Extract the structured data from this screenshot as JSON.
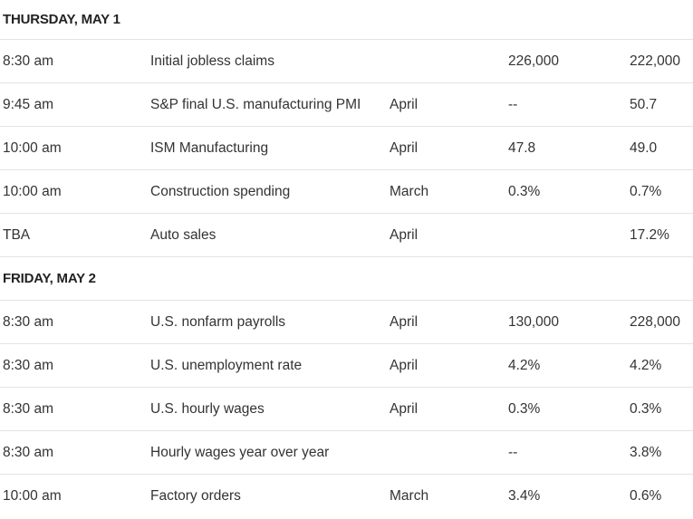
{
  "days": [
    {
      "header": "THURSDAY, MAY 1",
      "rows": [
        {
          "time": "8:30 am",
          "report": "Initial jobless claims",
          "period": "",
          "forecast": "226,000",
          "previous": "222,000"
        },
        {
          "time": "9:45 am",
          "report": "S&P final U.S. manufacturing PMI",
          "period": "April",
          "forecast": "--",
          "previous": "50.7"
        },
        {
          "time": "10:00 am",
          "report": "ISM Manufacturing",
          "period": "April",
          "forecast": "47.8",
          "previous": "49.0"
        },
        {
          "time": "10:00 am",
          "report": "Construction spending",
          "period": "March",
          "forecast": "0.3%",
          "previous": "0.7%"
        },
        {
          "time": "TBA",
          "report": "Auto sales",
          "period": "April",
          "forecast": "",
          "previous": "17.2%"
        }
      ]
    },
    {
      "header": "FRIDAY, MAY 2",
      "rows": [
        {
          "time": "8:30 am",
          "report": "U.S. nonfarm payrolls",
          "period": "April",
          "forecast": "130,000",
          "previous": "228,000"
        },
        {
          "time": "8:30 am",
          "report": "U.S. unemployment rate",
          "period": "April",
          "forecast": "4.2%",
          "previous": "4.2%"
        },
        {
          "time": "8:30 am",
          "report": "U.S. hourly wages",
          "period": "April",
          "forecast": "0.3%",
          "previous": "0.3%"
        },
        {
          "time": "8:30 am",
          "report": "Hourly wages year over year",
          "period": "",
          "forecast": "--",
          "previous": "3.8%"
        },
        {
          "time": "10:00 am",
          "report": "Factory orders",
          "period": "March",
          "forecast": "3.4%",
          "previous": "0.6%"
        }
      ]
    }
  ]
}
